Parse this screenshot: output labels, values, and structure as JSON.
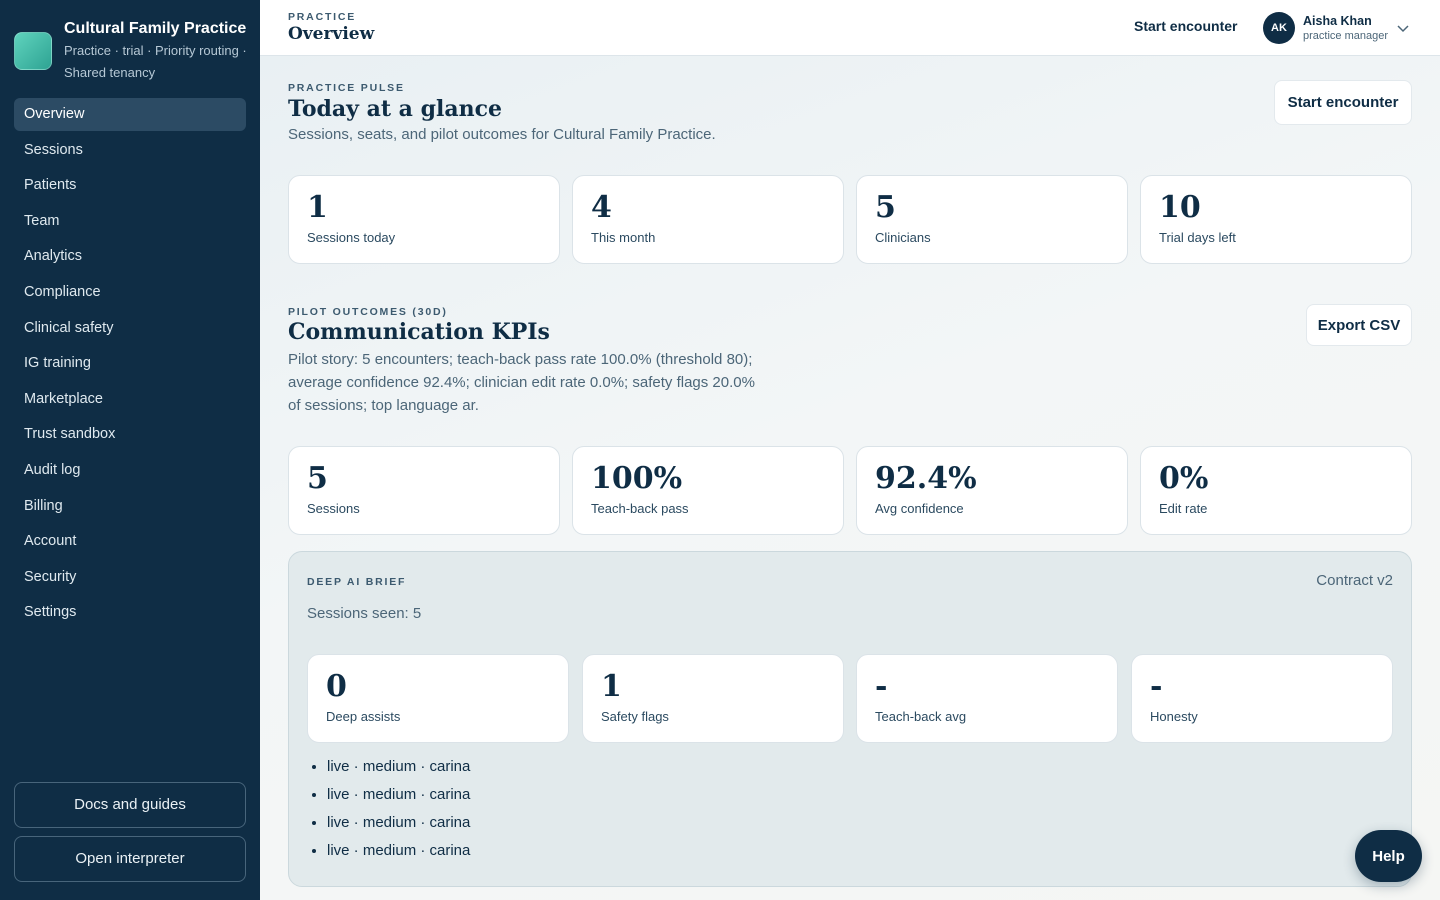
{
  "brand": {
    "name": "Cultural Family Practice",
    "subtitle": "Practice · trial · Priority routing · Shared tenancy"
  },
  "nav": [
    {
      "label": "Overview",
      "active": true
    },
    {
      "label": "Sessions"
    },
    {
      "label": "Patients"
    },
    {
      "label": "Team"
    },
    {
      "label": "Analytics"
    },
    {
      "label": "Compliance"
    },
    {
      "label": "Clinical safety"
    },
    {
      "label": "IG training"
    },
    {
      "label": "Marketplace"
    },
    {
      "label": "Trust sandbox"
    },
    {
      "label": "Audit log"
    },
    {
      "label": "Billing"
    },
    {
      "label": "Account"
    },
    {
      "label": "Security"
    },
    {
      "label": "Settings"
    }
  ],
  "sidebar_footer": {
    "docs_label": "Docs and guides",
    "interpreter_label": "Open interpreter"
  },
  "topbar": {
    "eyebrow": "PRACTICE",
    "title": "Overview",
    "start_label": "Start encounter",
    "user": {
      "initials": "AK",
      "name": "Aisha Khan",
      "role": "practice manager"
    }
  },
  "pulse": {
    "eyebrow": "PRACTICE PULSE",
    "title": "Today at a glance",
    "description": "Sessions, seats, and pilot outcomes for Cultural Family Practice.",
    "button_label": "Start encounter",
    "stats": [
      {
        "value": "1",
        "label": "Sessions today"
      },
      {
        "value": "4",
        "label": "This month"
      },
      {
        "value": "5",
        "label": "Clinicians"
      },
      {
        "value": "10",
        "label": "Trial days left"
      }
    ]
  },
  "kpis": {
    "eyebrow": "PILOT OUTCOMES (30D)",
    "title": "Communication KPIs",
    "description": "Pilot story: 5 encounters; teach-back pass rate 100.0% (threshold 80); average confidence 92.4%; clinician edit rate 0.0%; safety flags 20.0% of sessions; top language ar.",
    "export_label": "Export CSV",
    "stats": [
      {
        "value": "5",
        "label": "Sessions"
      },
      {
        "value": "100%",
        "label": "Teach-back pass"
      },
      {
        "value": "92.4%",
        "label": "Avg confidence"
      },
      {
        "value": "0%",
        "label": "Edit rate"
      }
    ]
  },
  "brief": {
    "eyebrow": "DEEP AI BRIEF",
    "version": "Contract v2",
    "sessions_seen": "Sessions seen: 5",
    "stats": [
      {
        "value": "0",
        "label": "Deep assists"
      },
      {
        "value": "1",
        "label": "Safety flags"
      },
      {
        "value": "-",
        "label": "Teach-back avg"
      },
      {
        "value": "-",
        "label": "Honesty"
      }
    ],
    "items": [
      "live · medium · carina",
      "live · medium · carina",
      "live · medium · carina",
      "live · medium · carina"
    ]
  },
  "help_label": "Help"
}
